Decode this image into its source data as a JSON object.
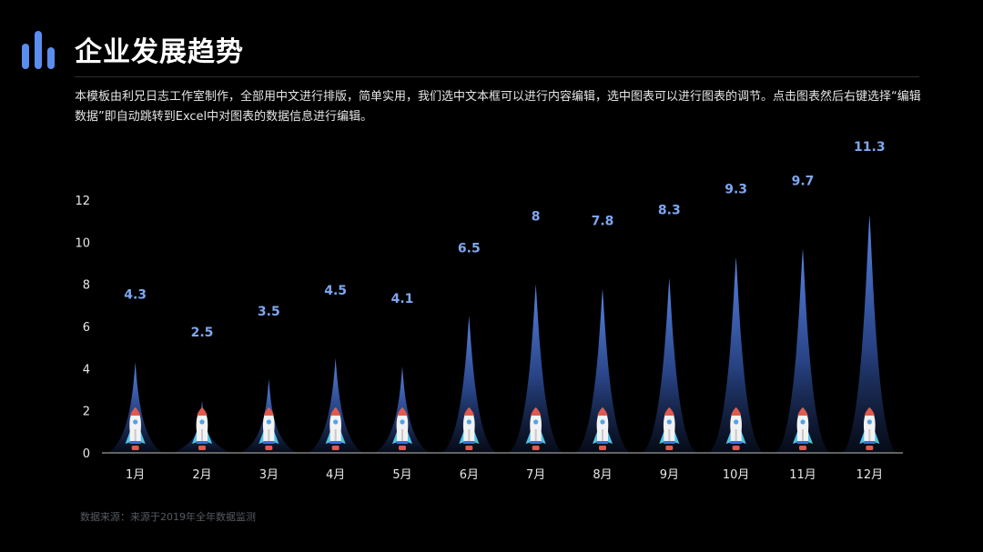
{
  "header": {
    "title": "企业发展趋势",
    "logo_icon": "bar-chart-logo-icon",
    "description": "本模板由利兄日志工作室制作，全部用中文进行排版，简单实用，我们选中文本框可以进行内容编辑，选中图表可以进行图表的调节。点击图表然后右键选择“编辑数据”即自动跳转到Excel中对图表的数据信息进行编辑。"
  },
  "footer": {
    "source": "数据来源：来源于2019年全年数据监测"
  },
  "colors": {
    "background": "#000000",
    "accent": "#5b8def",
    "value_label": "#7ea7f2",
    "plume_top": "#5b86e5",
    "axis": "#bfbfbf"
  },
  "chart_data": {
    "type": "bar",
    "title": "",
    "xlabel": "",
    "ylabel": "",
    "ylim": [
      0,
      12
    ],
    "yticks": [
      "0",
      "2",
      "4",
      "6",
      "8",
      "10",
      "12"
    ],
    "categories": [
      "1月",
      "2月",
      "3月",
      "4月",
      "5月",
      "6月",
      "7月",
      "8月",
      "9月",
      "10月",
      "11月",
      "12月"
    ],
    "values": [
      4.3,
      2.5,
      3.5,
      4.5,
      4.1,
      6.5,
      8,
      7.8,
      8.3,
      9.3,
      9.7,
      11.3
    ],
    "value_labels": [
      "4.3",
      "2.5",
      "3.5",
      "4.5",
      "4.1",
      "6.5",
      "8",
      "7.8",
      "8.3",
      "9.3",
      "9.7",
      "11.3"
    ],
    "marker_icon": "rocket-icon",
    "grid": false,
    "legend": "none"
  }
}
